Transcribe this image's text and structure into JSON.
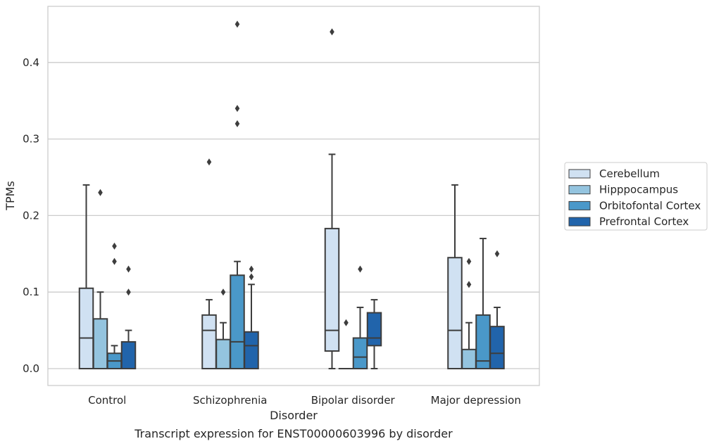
{
  "caption": "Transcript expression for ENST00000603996 by disorder",
  "chart_data": {
    "type": "box",
    "title": "",
    "xlabel": "Disorder",
    "ylabel": "TPMs",
    "ylim": [
      -0.022,
      0.473
    ],
    "yticks": [
      0.0,
      0.1,
      0.2,
      0.3,
      0.4
    ],
    "ytick_labels": [
      "0.0",
      "0.1",
      "0.2",
      "0.3",
      "0.4"
    ],
    "grid": "horizontal",
    "legend_position": "right",
    "categories": [
      "Control",
      "Schizophrenia",
      "Bipolar disorder",
      "Major depression"
    ],
    "series": [
      {
        "name": "Cerebellum",
        "color": "#d0e1f2",
        "boxes": [
          {
            "whislo": 0.0,
            "q1": 0.0,
            "med": 0.04,
            "q3": 0.105,
            "whishi": 0.24,
            "fliers": []
          },
          {
            "whislo": 0.0,
            "q1": 0.0,
            "med": 0.05,
            "q3": 0.07,
            "whishi": 0.09,
            "fliers": [
              0.27
            ]
          },
          {
            "whislo": 0.0,
            "q1": 0.023,
            "med": 0.05,
            "q3": 0.183,
            "whishi": 0.28,
            "fliers": [
              0.44
            ]
          },
          {
            "whislo": 0.0,
            "q1": 0.0,
            "med": 0.05,
            "q3": 0.145,
            "whishi": 0.24,
            "fliers": []
          }
        ]
      },
      {
        "name": "Hipppocampus",
        "color": "#94c4df",
        "boxes": [
          {
            "whislo": 0.0,
            "q1": 0.0,
            "med": 0.0,
            "q3": 0.065,
            "whishi": 0.1,
            "fliers": [
              0.23
            ]
          },
          {
            "whislo": 0.0,
            "q1": 0.0,
            "med": 0.0,
            "q3": 0.038,
            "whishi": 0.06,
            "fliers": [
              0.1
            ]
          },
          {
            "whislo": 0.0,
            "q1": 0.0,
            "med": 0.0,
            "q3": 0.0,
            "whishi": 0.0,
            "fliers": [
              0.06
            ]
          },
          {
            "whislo": 0.0,
            "q1": 0.0,
            "med": 0.0,
            "q3": 0.025,
            "whishi": 0.06,
            "fliers": [
              0.11,
              0.14
            ]
          }
        ]
      },
      {
        "name": "Orbitofontal Cortex",
        "color": "#4a98c9",
        "boxes": [
          {
            "whislo": 0.0,
            "q1": 0.0,
            "med": 0.01,
            "q3": 0.02,
            "whishi": 0.03,
            "fliers": [
              0.14,
              0.16
            ]
          },
          {
            "whislo": 0.0,
            "q1": 0.0,
            "med": 0.035,
            "q3": 0.122,
            "whishi": 0.14,
            "fliers": [
              0.32,
              0.34,
              0.45
            ]
          },
          {
            "whislo": 0.0,
            "q1": 0.0,
            "med": 0.015,
            "q3": 0.04,
            "whishi": 0.08,
            "fliers": [
              0.13
            ]
          },
          {
            "whislo": 0.0,
            "q1": 0.0,
            "med": 0.01,
            "q3": 0.07,
            "whishi": 0.17,
            "fliers": []
          }
        ]
      },
      {
        "name": "Prefrontal Cortex",
        "color": "#2164ab",
        "boxes": [
          {
            "whislo": 0.0,
            "q1": 0.0,
            "med": 0.0,
            "q3": 0.035,
            "whishi": 0.05,
            "fliers": [
              0.1,
              0.13
            ]
          },
          {
            "whislo": 0.0,
            "q1": 0.0,
            "med": 0.03,
            "q3": 0.048,
            "whishi": 0.11,
            "fliers": [
              0.12,
              0.13
            ]
          },
          {
            "whislo": 0.0,
            "q1": 0.03,
            "med": 0.04,
            "q3": 0.073,
            "whishi": 0.09,
            "fliers": []
          },
          {
            "whislo": 0.0,
            "q1": 0.0,
            "med": 0.02,
            "q3": 0.055,
            "whishi": 0.08,
            "fliers": [
              0.15
            ]
          }
        ]
      }
    ]
  }
}
